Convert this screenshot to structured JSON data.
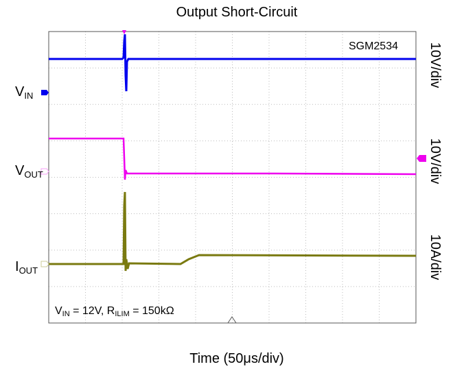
{
  "title": "Output Short-Circuit",
  "device": "SGM2534",
  "x_label": "Time (50μs/div)",
  "channels": [
    {
      "label": "V",
      "sub": "IN",
      "scale": "10V/div"
    },
    {
      "label": "V",
      "sub": "OUT",
      "scale": "10V/div"
    },
    {
      "label": "I",
      "sub": "OUT",
      "scale": "10A/div"
    }
  ],
  "conditions": [
    "V",
    "IN",
    " = 12V, R",
    "ILIM",
    " = 150kΩ"
  ]
}
